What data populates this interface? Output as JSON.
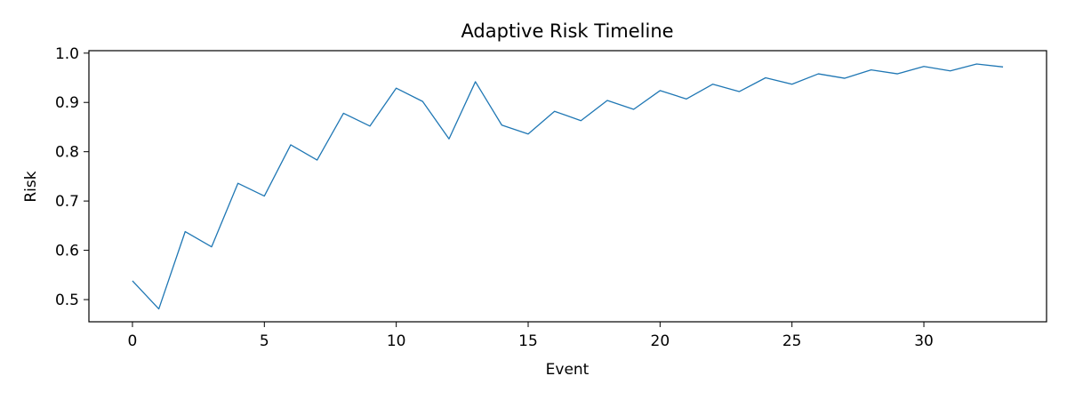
{
  "chart_data": {
    "type": "line",
    "title": "Adaptive Risk Timeline",
    "xlabel": "Event",
    "ylabel": "Risk",
    "xlim": [
      -1.65,
      34.65
    ],
    "ylim": [
      0.455,
      1.005
    ],
    "xticks": [
      0,
      5,
      10,
      15,
      20,
      25,
      30
    ],
    "yticks": [
      0.5,
      0.6,
      0.7,
      0.8,
      0.9,
      1.0
    ],
    "grid": false,
    "series": [
      {
        "color": "#1f77b4",
        "x": [
          0,
          1,
          2,
          3,
          4,
          5,
          6,
          7,
          8,
          9,
          10,
          11,
          12,
          13,
          14,
          15,
          16,
          17,
          18,
          19,
          20,
          21,
          22,
          23,
          24,
          25,
          26,
          27,
          28,
          29,
          30,
          31,
          32,
          33
        ],
        "values": [
          0.538,
          0.481,
          0.638,
          0.607,
          0.736,
          0.71,
          0.814,
          0.783,
          0.878,
          0.852,
          0.929,
          0.902,
          0.826,
          0.942,
          0.854,
          0.836,
          0.882,
          0.863,
          0.904,
          0.886,
          0.924,
          0.907,
          0.937,
          0.922,
          0.95,
          0.937,
          0.958,
          0.949,
          0.966,
          0.958,
          0.973,
          0.964,
          0.978,
          0.972
        ]
      }
    ]
  }
}
